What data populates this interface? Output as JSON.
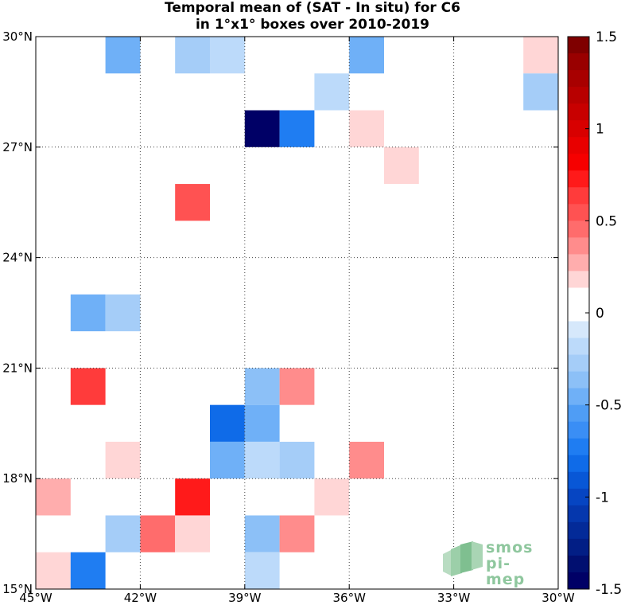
{
  "title": {
    "line1": "Temporal mean of (SAT - In situ) for C6",
    "line2": "in 1°x1° boxes over 2010-2019"
  },
  "logo": {
    "line1": "smos",
    "line2": "pi-mep"
  },
  "chart_data": {
    "type": "heatmap",
    "title": "Temporal mean of (SAT - In situ) for C6 in 1°x1° boxes over 2010-2019",
    "x_ticks": [
      {
        "value": -45,
        "label": "45°W"
      },
      {
        "value": -42,
        "label": "42°W"
      },
      {
        "value": -39,
        "label": "39°W"
      },
      {
        "value": -36,
        "label": "36°W"
      },
      {
        "value": -33,
        "label": "33°W"
      },
      {
        "value": -30,
        "label": "30°W"
      }
    ],
    "y_ticks": [
      {
        "value": 15,
        "label": "15°N"
      },
      {
        "value": 18,
        "label": "18°N"
      },
      {
        "value": 21,
        "label": "21°N"
      },
      {
        "value": 24,
        "label": "24°N"
      },
      {
        "value": 27,
        "label": "27°N"
      },
      {
        "value": 30,
        "label": "30°N"
      }
    ],
    "xlim": [
      -45,
      -30
    ],
    "ylim": [
      15,
      30
    ],
    "grid": true,
    "colorbar": {
      "range": [
        -1.5,
        1.5
      ],
      "ticks": [
        {
          "value": 1.5,
          "label": "1.5"
        },
        {
          "value": 1,
          "label": "1"
        },
        {
          "value": 0.5,
          "label": "0.5"
        },
        {
          "value": 0,
          "label": "0"
        },
        {
          "value": -0.5,
          "label": "-0.5"
        },
        {
          "value": -1,
          "label": "-1"
        },
        {
          "value": -1.5,
          "label": "-1.5"
        }
      ],
      "levels_top_to_bottom": [
        "#7f0000",
        "#990000",
        "#a80000",
        "#b80000",
        "#c80000",
        "#d80000",
        "#e80000",
        "#f60000",
        "#ff1a1a",
        "#ff3b3b",
        "#ff5252",
        "#ff6c6c",
        "#ff8c8c",
        "#ffadad",
        "#ffd6d6",
        "#ffffff",
        "#ffffff",
        "#d6e8fb",
        "#bcdafa",
        "#a5cdf8",
        "#8cc0f7",
        "#6fb0f7",
        "#4f9df5",
        "#3a8ef5",
        "#1f7df2",
        "#0f6be8",
        "#0857d6",
        "#0645c2",
        "#0537ad",
        "#032a98",
        "#021e85",
        "#010f70",
        "#000066"
      ]
    },
    "cells": [
      {
        "lon": -43,
        "lat": 29,
        "value": -0.45
      },
      {
        "lon": -41,
        "lat": 29,
        "value": -0.3
      },
      {
        "lon": -40,
        "lat": 29,
        "value": -0.2
      },
      {
        "lon": -36,
        "lat": 29,
        "value": -0.45
      },
      {
        "lon": -31,
        "lat": 29,
        "value": 0.15
      },
      {
        "lon": -37,
        "lat": 28,
        "value": -0.15
      },
      {
        "lon": -31,
        "lat": 28,
        "value": -0.3
      },
      {
        "lon": -39,
        "lat": 27,
        "value": -1.5
      },
      {
        "lon": -38,
        "lat": 27,
        "value": -0.7
      },
      {
        "lon": -36,
        "lat": 27,
        "value": 0.15
      },
      {
        "lon": -35,
        "lat": 26,
        "value": 0.15
      },
      {
        "lon": -41,
        "lat": 25,
        "value": 0.55
      },
      {
        "lon": -44,
        "lat": 22,
        "value": -0.45
      },
      {
        "lon": -43,
        "lat": 22,
        "value": -0.25
      },
      {
        "lon": -44,
        "lat": 20,
        "value": 0.6
      },
      {
        "lon": -39,
        "lat": 20,
        "value": -0.35
      },
      {
        "lon": -38,
        "lat": 20,
        "value": 0.4
      },
      {
        "lon": -40,
        "lat": 19,
        "value": -0.8
      },
      {
        "lon": -39,
        "lat": 19,
        "value": -0.45
      },
      {
        "lon": -43,
        "lat": 18,
        "value": 0.15
      },
      {
        "lon": -40,
        "lat": 18,
        "value": -0.45
      },
      {
        "lon": -39,
        "lat": 18,
        "value": -0.15
      },
      {
        "lon": -38,
        "lat": 18,
        "value": -0.25
      },
      {
        "lon": -36,
        "lat": 18,
        "value": 0.4
      },
      {
        "lon": -45,
        "lat": 17,
        "value": 0.25
      },
      {
        "lon": -41,
        "lat": 17,
        "value": 0.75
      },
      {
        "lon": -37,
        "lat": 17,
        "value": 0.15
      },
      {
        "lon": -43,
        "lat": 16,
        "value": -0.3
      },
      {
        "lon": -42,
        "lat": 16,
        "value": 0.5
      },
      {
        "lon": -41,
        "lat": 16,
        "value": 0.15
      },
      {
        "lon": -39,
        "lat": 16,
        "value": -0.35
      },
      {
        "lon": -38,
        "lat": 16,
        "value": 0.4
      },
      {
        "lon": -45,
        "lat": 15,
        "value": 0.15
      },
      {
        "lon": -44,
        "lat": 15,
        "value": -0.7
      },
      {
        "lon": -39,
        "lat": 15,
        "value": -0.15
      }
    ]
  }
}
